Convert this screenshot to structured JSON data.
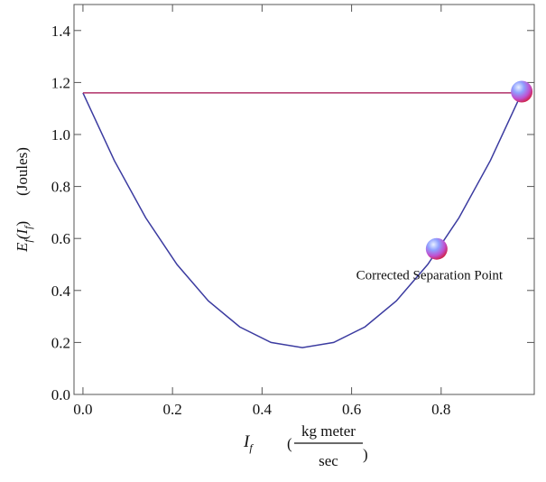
{
  "chart_data": {
    "type": "line",
    "xlim": [
      -0.02,
      1.008
    ],
    "ylim": [
      0,
      1.5
    ],
    "xticks": [
      {
        "value": 0,
        "label": "0.0"
      },
      {
        "value": 0.2,
        "label": "0.2"
      },
      {
        "value": 0.4,
        "label": "0.4"
      },
      {
        "value": 0.6,
        "label": "0.6"
      },
      {
        "value": 0.8,
        "label": "0.8"
      }
    ],
    "yticks": [
      {
        "value": 0,
        "label": "0.0"
      },
      {
        "value": 0.2,
        "label": "0.2"
      },
      {
        "value": 0.4,
        "label": "0.4"
      },
      {
        "value": 0.6,
        "label": "0.6"
      },
      {
        "value": 0.8,
        "label": "0.8"
      },
      {
        "value": 1,
        "label": "1.0"
      },
      {
        "value": 1.2,
        "label": "1.2"
      },
      {
        "value": 1.4,
        "label": "1.4"
      }
    ],
    "series": [
      {
        "color": "#3b3ba0",
        "x": [
          0,
          0.07,
          0.14,
          0.21,
          0.28,
          0.35,
          0.42,
          0.49,
          0.56,
          0.63,
          0.7,
          0.77,
          0.84,
          0.91,
          0.98
        ],
        "values": [
          1.16,
          0.9,
          0.68,
          0.5,
          0.36,
          0.26,
          0.2,
          0.18,
          0.2,
          0.26,
          0.36,
          0.5,
          0.68,
          0.9,
          1.16
        ]
      },
      {
        "color": "#b03068",
        "x": [
          0,
          0.98
        ],
        "values": [
          1.16,
          1.16
        ]
      }
    ],
    "points": [
      {
        "x": 0.98,
        "y": 1.165
      },
      {
        "x": 0.79,
        "y": 0.56
      }
    ],
    "annotation": "Corrected Separation Point",
    "ylabel": {
      "symbol": "E",
      "sub": "f",
      "arg": "(I",
      "arg_sub": "f",
      "close": ")",
      "unit": "(Joules)"
    },
    "xlabel": {
      "symbol": "I",
      "sub": "f",
      "open": "(",
      "numerator": "kg meter",
      "denominator": "sec",
      "close": ")"
    }
  }
}
